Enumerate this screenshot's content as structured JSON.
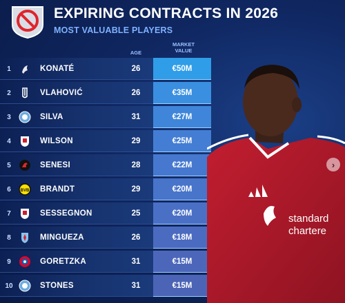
{
  "header": {
    "title": "EXPIRING CONTRACTS IN 2026",
    "subtitle": "MOST VALUABLE PLAYERS"
  },
  "columns": {
    "age": "AGE",
    "value_line1": "MARKET",
    "value_line2": "VALUE"
  },
  "rows": [
    {
      "rank": "1",
      "club_icon": "liverpool-crest-icon",
      "name": "KONATÉ",
      "age": "26",
      "value": "€50M",
      "value_color": "#2f9de8"
    },
    {
      "rank": "2",
      "club_icon": "juventus-crest-icon",
      "name": "VLAHOVIĆ",
      "age": "26",
      "value": "€35M",
      "value_color": "#3a8fe0"
    },
    {
      "rank": "3",
      "club_icon": "man-city-crest-icon",
      "name": "SILVA",
      "age": "31",
      "value": "€27M",
      "value_color": "#3f86da"
    },
    {
      "rank": "4",
      "club_icon": "fulham-crest-icon",
      "name": "WILSON",
      "age": "29",
      "value": "€25M",
      "value_color": "#437ed4"
    },
    {
      "rank": "5",
      "club_icon": "bournemouth-crest-icon",
      "name": "SENESI",
      "age": "28",
      "value": "€22M",
      "value_color": "#4678cf"
    },
    {
      "rank": "6",
      "club_icon": "dortmund-crest-icon",
      "name": "BRANDT",
      "age": "29",
      "value": "€20M",
      "value_color": "#4874ca"
    },
    {
      "rank": "7",
      "club_icon": "fulham-crest-icon",
      "name": "SESSEGNON",
      "age": "25",
      "value": "€20M",
      "value_color": "#4a70c6"
    },
    {
      "rank": "8",
      "club_icon": "celta-crest-icon",
      "name": "MINGUEZA",
      "age": "26",
      "value": "€18M",
      "value_color": "#4b6bc0"
    },
    {
      "rank": "9",
      "club_icon": "bayern-crest-icon",
      "name": "GORETZKA",
      "age": "31",
      "value": "€15M",
      "value_color": "#4c67ba"
    },
    {
      "rank": "10",
      "club_icon": "man-city-crest-icon",
      "name": "STONES",
      "age": "31",
      "value": "€15M",
      "value_color": "#4c64b6"
    }
  ],
  "player_photo": {
    "sponsor_line1": "standard",
    "sponsor_line2": "chartere"
  },
  "colors": {
    "accent_title": "#7fb2ff",
    "background": "#0f2660",
    "shirt_red": "#b01a2a"
  }
}
